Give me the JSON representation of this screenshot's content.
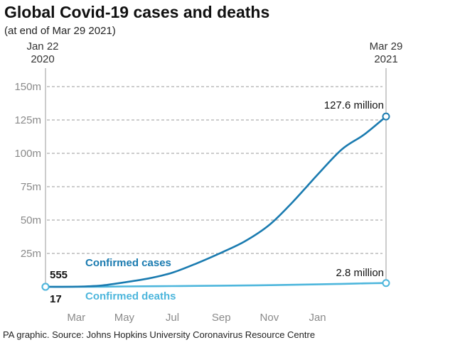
{
  "chart_data": {
    "type": "line",
    "title": "Global Covid-19 cases and deaths",
    "subtitle": "(at end of Mar 29 2021)",
    "source": "PA graphic. Source: Johns Hopkins University Coronavirus Resource Centre",
    "x_start_label": [
      "Jan 22",
      "2020"
    ],
    "x_end_label": [
      "Mar 29",
      "2021"
    ],
    "x_ticks": [
      {
        "date": "2020-03-01",
        "label": "Mar"
      },
      {
        "date": "2020-05-01",
        "label": "May"
      },
      {
        "date": "2020-07-01",
        "label": "Jul"
      },
      {
        "date": "2020-09-01",
        "label": "Sep"
      },
      {
        "date": "2020-11-01",
        "label": "Nov"
      },
      {
        "date": "2021-01-01",
        "label": "Jan"
      }
    ],
    "x_range": [
      "2020-01-22",
      "2021-03-29"
    ],
    "ylim": [
      0,
      150
    ],
    "y_ticks": [
      {
        "value": 25,
        "label": "25m"
      },
      {
        "value": 50,
        "label": "50m"
      },
      {
        "value": 75,
        "label": "75m"
      },
      {
        "value": 100,
        "label": "100m"
      },
      {
        "value": 125,
        "label": "125m"
      },
      {
        "value": 150,
        "label": "150m"
      }
    ],
    "grid": true,
    "series": [
      {
        "name": "Confirmed cases",
        "color": "#1a7bb0",
        "points": [
          [
            "2020-01-22",
            0.000555
          ],
          [
            "2020-03-01",
            0.09
          ],
          [
            "2020-04-01",
            0.9
          ],
          [
            "2020-05-01",
            3.3
          ],
          [
            "2020-06-01",
            6.3
          ],
          [
            "2020-07-01",
            10.6
          ],
          [
            "2020-08-01",
            17.6
          ],
          [
            "2020-09-01",
            25.6
          ],
          [
            "2020-10-01",
            34.1
          ],
          [
            "2020-11-01",
            46.4
          ],
          [
            "2020-12-01",
            63.8
          ],
          [
            "2021-01-01",
            83.9
          ],
          [
            "2021-02-01",
            103.0
          ],
          [
            "2021-03-01",
            114.0
          ],
          [
            "2021-03-29",
            127.6
          ]
        ],
        "start_label": "555",
        "end_label": "127.6 million"
      },
      {
        "name": "Confirmed deaths",
        "color": "#4db6dc",
        "points": [
          [
            "2020-01-22",
            1.7e-05
          ],
          [
            "2020-03-01",
            0.003
          ],
          [
            "2020-04-01",
            0.05
          ],
          [
            "2020-05-01",
            0.24
          ],
          [
            "2020-07-01",
            0.52
          ],
          [
            "2020-09-01",
            0.85
          ],
          [
            "2020-11-01",
            1.2
          ],
          [
            "2021-01-01",
            1.8
          ],
          [
            "2021-02-01",
            2.2
          ],
          [
            "2021-03-01",
            2.55
          ],
          [
            "2021-03-29",
            2.8
          ]
        ],
        "start_label": "17",
        "end_label": "2.8 million"
      }
    ]
  }
}
